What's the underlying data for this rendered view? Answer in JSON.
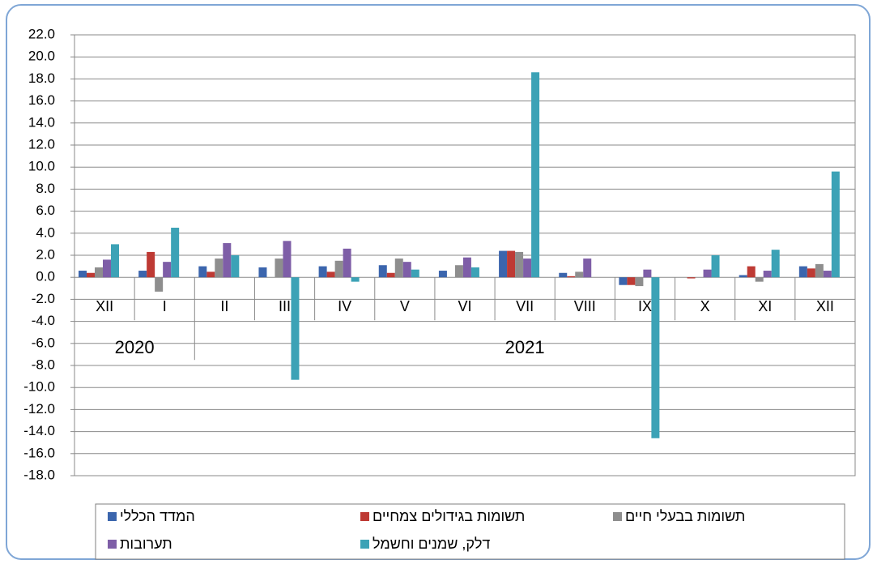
{
  "chart_data": {
    "type": "bar",
    "categories": [
      "XII",
      "I",
      "II",
      "III",
      "IV",
      "V",
      "VI",
      "VII",
      "VIII",
      "IX",
      "X",
      "XI",
      "XII"
    ],
    "groups": [
      {
        "label": "2020",
        "span": [
          0,
          1
        ]
      },
      {
        "label": "2021",
        "span": [
          2,
          12
        ]
      }
    ],
    "series": [
      {
        "name": "המדד הכללי",
        "color": "#3b65ad",
        "values": [
          0.6,
          0.6,
          1.0,
          0.9,
          1.0,
          1.1,
          0.6,
          2.4,
          0.4,
          -0.7,
          0.0,
          0.2,
          1.0
        ]
      },
      {
        "name": "תשומות בגידולים צמחיים",
        "color": "#be3a34",
        "values": [
          0.4,
          2.3,
          0.5,
          0.0,
          0.5,
          0.4,
          0.0,
          2.4,
          0.1,
          -0.7,
          -0.1,
          1.0,
          0.8
        ]
      },
      {
        "name": "תשומות בבעלי חיים",
        "color": "#8e8e8e",
        "values": [
          0.9,
          -1.3,
          1.7,
          1.7,
          1.5,
          1.7,
          1.1,
          2.3,
          0.5,
          -0.8,
          0.0,
          -0.4,
          1.2
        ]
      },
      {
        "name": "תערובות",
        "color": "#7e5ea7",
        "values": [
          1.6,
          1.4,
          3.1,
          3.3,
          2.6,
          1.4,
          1.8,
          1.7,
          1.7,
          0.7,
          0.7,
          0.6,
          0.6
        ]
      },
      {
        "name": "דלק, שמנים וחשמל",
        "color": "#3ca2b6",
        "values": [
          3.0,
          4.5,
          2.0,
          -9.3,
          -0.4,
          0.7,
          0.9,
          18.6,
          0.0,
          -14.6,
          2.0,
          2.5,
          9.6
        ]
      }
    ],
    "ylim": [
      -18,
      22
    ],
    "yticks": [
      {
        "value": -18,
        "label": "-18.0"
      },
      {
        "value": -16,
        "label": "-16.0"
      },
      {
        "value": -14,
        "label": "-14.0"
      },
      {
        "value": -12,
        "label": "-12.0"
      },
      {
        "value": -10,
        "label": "-10.0"
      },
      {
        "value": -8,
        "label": "-8.0"
      },
      {
        "value": -6,
        "label": "-6.0"
      },
      {
        "value": -4,
        "label": "-4.0"
      },
      {
        "value": -2,
        "label": "-2.0"
      },
      {
        "value": 0,
        "label": "0.0"
      },
      {
        "value": 2,
        "label": "2.0"
      },
      {
        "value": 4,
        "label": "4.0"
      },
      {
        "value": 6,
        "label": "6.0"
      },
      {
        "value": 8,
        "label": "8.0"
      },
      {
        "value": 10,
        "label": "10.0"
      },
      {
        "value": 12,
        "label": "12.0"
      },
      {
        "value": 14,
        "label": "14.0"
      },
      {
        "value": 16,
        "label": "16.0"
      },
      {
        "value": 18,
        "label": "18.0"
      },
      {
        "value": 20,
        "label": "20.0"
      },
      {
        "value": 22,
        "label": "22.0"
      }
    ],
    "grid": true
  }
}
